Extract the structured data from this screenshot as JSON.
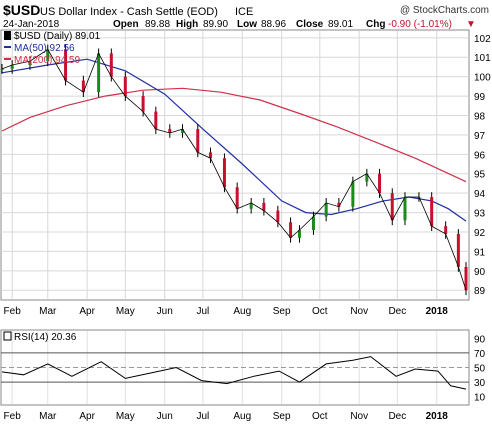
{
  "header": {
    "symbol": "$USD",
    "name": "US Dollar Index - Cash Settle (EOD)",
    "exchange": "ICE",
    "watermark": "@ StockCharts.com",
    "date": "24-Jan-2018",
    "open_label": "Open",
    "open": "89.88",
    "high_label": "High",
    "high": "89.90",
    "low_label": "Low",
    "low": "88.96",
    "close_label": "Close",
    "close": "89.01",
    "chg_label": "Chg",
    "chg": "-0.90 (-1.01%)",
    "chg_arrow": "▼"
  },
  "legend": [
    {
      "text": "$USD (Daily) 89.01",
      "color": "#000000",
      "icon": "candle-icon"
    },
    {
      "text": "MA(50) 92.56",
      "color": "#1f2fa0",
      "icon": "line-swatch-icon"
    },
    {
      "text": "MA(200) 94.59",
      "color": "#d0304a",
      "icon": "line-swatch-icon"
    }
  ],
  "rsi_legend": {
    "text": "RSI(14) 20.36",
    "color": "#000000"
  },
  "x_ticks": [
    "Feb",
    "Mar",
    "Apr",
    "May",
    "Jun",
    "Jul",
    "Aug",
    "Sep",
    "Oct",
    "Nov",
    "Dec",
    "2018"
  ],
  "price_ticks": [
    "102",
    "101",
    "100",
    "99",
    "98",
    "97",
    "96",
    "95",
    "94",
    "93",
    "92",
    "91",
    "90",
    "89"
  ],
  "rsi_ticks": [
    "90",
    "70",
    "50",
    "30",
    "10"
  ],
  "chart_data": [
    {
      "type": "line",
      "title": "$USD US Dollar Index - Cash Settle (EOD) ICE",
      "xlabel": "",
      "ylabel": "",
      "ylim": [
        88.6,
        102.3
      ],
      "grid": true,
      "legend_position": "top-left",
      "x_domain": [
        "2017-01-24",
        "2018-01-24"
      ],
      "series": [
        {
          "name": "$USD (Daily)",
          "style": "ohlc-bars",
          "color": "#000000",
          "x": [
            "2017-01-24",
            "2017-02-01",
            "2017-02-15",
            "2017-03-01",
            "2017-03-15",
            "2017-03-29",
            "2017-04-10",
            "2017-04-20",
            "2017-05-01",
            "2017-05-15",
            "2017-05-25",
            "2017-06-05",
            "2017-06-15",
            "2017-06-27",
            "2017-07-07",
            "2017-07-18",
            "2017-07-28",
            "2017-08-08",
            "2017-08-18",
            "2017-08-29",
            "2017-09-08",
            "2017-09-15",
            "2017-09-26",
            "2017-10-06",
            "2017-10-16",
            "2017-10-27",
            "2017-11-07",
            "2017-11-17",
            "2017-11-27",
            "2017-12-07",
            "2017-12-18",
            "2017-12-28",
            "2018-01-08",
            "2018-01-18",
            "2018-01-24"
          ],
          "values": [
            100.4,
            100.6,
            100.8,
            101.4,
            99.8,
            99.2,
            101.2,
            100.0,
            99.0,
            98.2,
            97.3,
            97.1,
            97.3,
            96.1,
            95.8,
            94.3,
            93.2,
            93.5,
            93.1,
            92.5,
            91.7,
            92.1,
            92.8,
            93.5,
            93.3,
            94.6,
            95.0,
            94.0,
            92.6,
            93.8,
            93.8,
            92.3,
            91.9,
            90.2,
            89.0
          ],
          "last": {
            "open": 89.88,
            "high": 89.9,
            "low": 88.96,
            "close": 89.01
          }
        },
        {
          "name": "MA(50)",
          "color": "#1f2fa0",
          "x": [
            "2017-01-24",
            "2017-03-01",
            "2017-04-01",
            "2017-05-01",
            "2017-06-01",
            "2017-07-01",
            "2017-08-01",
            "2017-09-01",
            "2017-09-20",
            "2017-10-10",
            "2017-10-30",
            "2017-11-20",
            "2017-12-10",
            "2017-12-28",
            "2018-01-10",
            "2018-01-24"
          ],
          "values": [
            100.2,
            100.6,
            100.9,
            100.3,
            99.1,
            97.3,
            95.5,
            93.6,
            93.0,
            92.9,
            93.2,
            93.6,
            93.8,
            93.6,
            93.2,
            92.56
          ]
        },
        {
          "name": "MA(200)",
          "color": "#d0304a",
          "x": [
            "2017-01-24",
            "2017-02-15",
            "2017-03-15",
            "2017-04-15",
            "2017-05-15",
            "2017-06-15",
            "2017-07-15",
            "2017-08-15",
            "2017-09-15",
            "2017-10-15",
            "2017-11-15",
            "2017-12-15",
            "2018-01-24"
          ],
          "values": [
            97.2,
            97.9,
            98.5,
            99.0,
            99.3,
            99.4,
            99.2,
            98.8,
            98.1,
            97.4,
            96.6,
            95.8,
            94.59
          ]
        }
      ]
    },
    {
      "type": "line",
      "title": "RSI(14) 20.36",
      "xlabel": "",
      "ylabel": "",
      "ylim": [
        0,
        100
      ],
      "reference_lines": [
        70,
        50,
        30
      ],
      "series": [
        {
          "name": "RSI(14)",
          "color": "#000000",
          "x": [
            "2017-01-24",
            "2017-02-10",
            "2017-03-01",
            "2017-03-20",
            "2017-04-12",
            "2017-05-01",
            "2017-05-20",
            "2017-06-10",
            "2017-06-30",
            "2017-07-20",
            "2017-08-10",
            "2017-08-30",
            "2017-09-15",
            "2017-10-06",
            "2017-10-27",
            "2017-11-10",
            "2017-11-30",
            "2017-12-15",
            "2018-01-02",
            "2018-01-12",
            "2018-01-24"
          ],
          "values": [
            44,
            40,
            55,
            38,
            58,
            35,
            42,
            50,
            32,
            28,
            38,
            45,
            30,
            55,
            60,
            65,
            38,
            48,
            45,
            25,
            20.36
          ]
        }
      ]
    }
  ]
}
